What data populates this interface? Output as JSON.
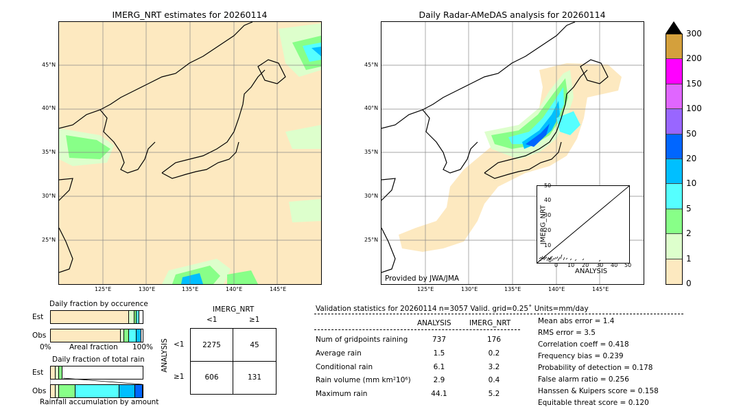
{
  "left_map": {
    "title": "IMERG_NRT estimates for 20260114",
    "lat_labels": [
      "45°N",
      "40°N",
      "35°N",
      "30°N",
      "25°N"
    ],
    "lon_labels": [
      "125°E",
      "130°E",
      "135°E",
      "140°E",
      "145°E"
    ]
  },
  "right_map": {
    "title": "Daily Radar-AMeDAS analysis for 20260114",
    "lat_labels": [
      "45°N",
      "40°N",
      "35°N",
      "30°N",
      "25°N"
    ],
    "lon_labels": [
      "125°E",
      "130°E",
      "135°E",
      "140°E",
      "145°E"
    ],
    "credit": "Provided by JWA/JMA"
  },
  "colorbar": {
    "ticks": [
      "300",
      "200",
      "150",
      "100",
      "50",
      "20",
      "10",
      "5",
      "2",
      "1",
      "0"
    ],
    "colors": [
      "#d4a03c",
      "#ff00ff",
      "#e066ff",
      "#9966ff",
      "#0066ff",
      "#00bfff",
      "#55ffff",
      "#88ff88",
      "#ddffcc",
      "#fde9c0"
    ]
  },
  "inset_scatter": {
    "xlabel": "ANALYSIS",
    "ylabel": "IMERG_NRT",
    "ticks": [
      "0",
      "10",
      "20",
      "30",
      "40",
      "50"
    ]
  },
  "fraction_panels": {
    "occurrence_title": "Daily fraction by occurence",
    "total_rain_title": "Daily fraction of total rain",
    "accumulation_caption": "Rainfall accumulation by amount",
    "row_est": "Est",
    "row_obs": "Obs",
    "axis_left": "0%",
    "axis_mid": "Areal fraction",
    "axis_right": "100%"
  },
  "contingency": {
    "col_title": "IMERG_NRT",
    "col_labels": [
      "<1",
      "≥1"
    ],
    "row_title": "ANALYSIS",
    "row_labels": [
      "<1",
      "≥1"
    ],
    "cells": [
      "2275",
      "45",
      "606",
      "131"
    ]
  },
  "validation": {
    "header": "Validation statistics for 20260114  n=3057 Valid. grid=0.25˚ Units=mm/day",
    "col_analysis": "ANALYSIS",
    "col_imerg": "IMERG_NRT",
    "rows": [
      {
        "label": "Num of gridpoints raining",
        "analysis": "737",
        "imerg": "176"
      },
      {
        "label": "Average rain",
        "analysis": "1.5",
        "imerg": "0.2"
      },
      {
        "label": "Conditional rain",
        "analysis": "6.1",
        "imerg": "3.2"
      },
      {
        "label": "Rain volume (mm km²10⁶)",
        "analysis": "2.9",
        "imerg": "0.4"
      },
      {
        "label": "Maximum rain",
        "analysis": "44.1",
        "imerg": "5.2"
      }
    ],
    "scores": [
      "Mean abs error =    1.4",
      "RMS error =    3.5",
      "Correlation coeff =  0.418",
      "Frequency bias =  0.239",
      "Probability of detection =  0.178",
      "False alarm ratio =  0.256",
      "Hanssen & Kuipers score =  0.158",
      "Equitable threat score =  0.120"
    ]
  },
  "chart_data": {
    "type": "table",
    "contingency_table": {
      "rows": [
        "<1",
        "≥1"
      ],
      "columns": [
        "<1",
        "≥1"
      ],
      "values": [
        [
          2275,
          45
        ],
        [
          606,
          131
        ]
      ]
    },
    "occurrence_fraction": {
      "Est": [
        0.85,
        0.06,
        0.02,
        0.03
      ],
      "Obs": [
        0.76,
        0.04,
        0.05,
        0.08,
        0.05
      ]
    },
    "total_rain_fraction": {
      "Est": [
        0.05,
        0.04,
        0.04
      ],
      "Obs": [
        0.05,
        0.04,
        0.18,
        0.48,
        0.17,
        0.08
      ]
    }
  }
}
